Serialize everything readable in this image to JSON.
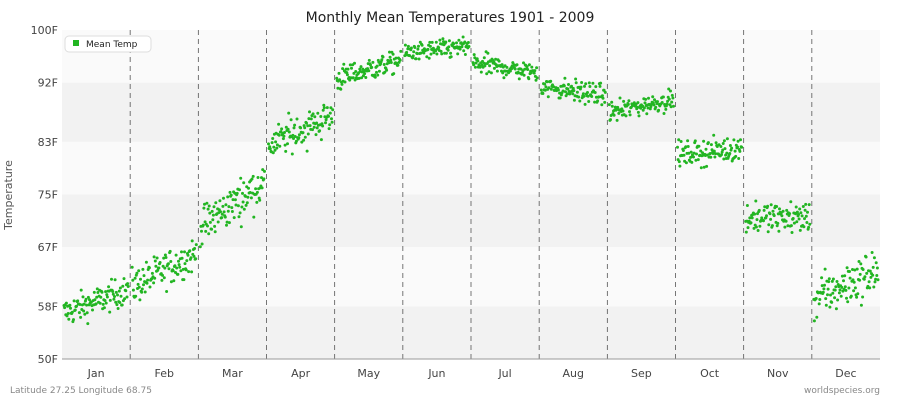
{
  "chart_data": {
    "type": "scatter",
    "title": "Monthly Mean Temperatures 1901 - 2009",
    "xlabel": "",
    "ylabel": "Temperature",
    "y_ticks": [
      "50F",
      "58F",
      "67F",
      "75F",
      "83F",
      "92F",
      "100F"
    ],
    "y_tick_values": [
      50,
      58,
      67,
      75,
      83,
      92,
      100
    ],
    "ylim": [
      50,
      100
    ],
    "categories": [
      "Jan",
      "Feb",
      "Mar",
      "Apr",
      "May",
      "Jun",
      "Jul",
      "Aug",
      "Sep",
      "Oct",
      "Nov",
      "Dec"
    ],
    "years": [
      1901,
      2009
    ],
    "grid": true,
    "legend_position": "top-left",
    "series": [
      {
        "name": "Mean Temp",
        "color": "#22b522",
        "monthly_values": [
          {
            "month": "Jan",
            "min": 54.5,
            "max": 63.5,
            "mean": 58.5,
            "start": 57.0,
            "end": 60.5
          },
          {
            "month": "Feb",
            "min": 58.5,
            "max": 69.5,
            "mean": 63.8,
            "start": 61.0,
            "end": 66.0
          },
          {
            "month": "Mar",
            "min": 67.0,
            "max": 79.0,
            "mean": 74.0,
            "start": 70.0,
            "end": 77.0
          },
          {
            "month": "Apr",
            "min": 79.0,
            "max": 90.5,
            "mean": 84.8,
            "start": 82.5,
            "end": 87.0
          },
          {
            "month": "May",
            "min": 89.5,
            "max": 97.0,
            "mean": 93.5,
            "start": 92.5,
            "end": 95.5
          },
          {
            "month": "Jun",
            "min": 93.5,
            "max": 99.0,
            "mean": 96.5,
            "start": 96.5,
            "end": 97.5
          },
          {
            "month": "Jul",
            "min": 91.0,
            "max": 97.0,
            "mean": 93.8,
            "start": 95.0,
            "end": 93.5
          },
          {
            "month": "Aug",
            "min": 87.5,
            "max": 94.0,
            "mean": 90.5,
            "start": 91.5,
            "end": 90.0
          },
          {
            "month": "Sep",
            "min": 85.5,
            "max": 91.5,
            "mean": 88.5,
            "start": 87.5,
            "end": 89.5
          },
          {
            "month": "Oct",
            "min": 78.0,
            "max": 85.5,
            "mean": 81.5,
            "start": 81.0,
            "end": 82.0
          },
          {
            "month": "Nov",
            "min": 65.5,
            "max": 74.5,
            "mean": 71.0,
            "start": 71.5,
            "end": 71.5
          },
          {
            "month": "Dec",
            "min": 55.5,
            "max": 68.5,
            "mean": 61.0,
            "start": 59.0,
            "end": 63.5
          }
        ]
      }
    ]
  },
  "footer": {
    "left": "Latitude 27.25 Longitude 68.75",
    "right": "worldspecies.org"
  }
}
